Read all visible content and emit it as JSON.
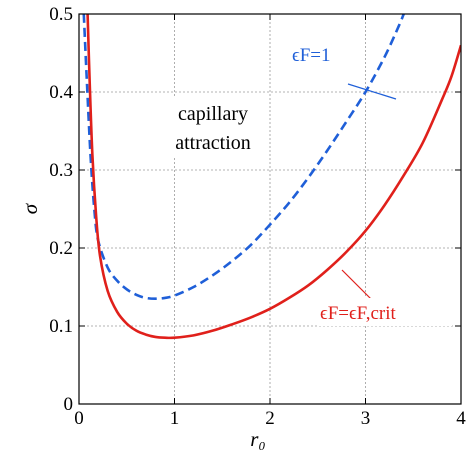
{
  "chart_data": {
    "type": "line",
    "title": "",
    "xlabel": "r₀",
    "ylabel": "σ",
    "xlim": [
      0,
      4
    ],
    "ylim": [
      0,
      0.5
    ],
    "x_ticks": [
      "0",
      "1",
      "2",
      "3",
      "4"
    ],
    "y_ticks": [
      "0",
      "0.1",
      "0.2",
      "0.3",
      "0.4",
      "0.5"
    ],
    "grid": true,
    "annotation": [
      "capillary",
      "attraction"
    ],
    "series": [
      {
        "label": "ϵF=1",
        "color": "#1f5fd8",
        "style": "dashed",
        "points": [
          [
            0.05,
            0.5
          ],
          [
            0.08,
            0.42
          ],
          [
            0.12,
            0.32
          ],
          [
            0.16,
            0.25
          ],
          [
            0.2,
            0.21
          ],
          [
            0.3,
            0.175
          ],
          [
            0.4,
            0.158
          ],
          [
            0.5,
            0.147
          ],
          [
            0.6,
            0.14
          ],
          [
            0.7,
            0.136
          ],
          [
            0.8,
            0.135
          ],
          [
            0.9,
            0.136
          ],
          [
            1.0,
            0.139
          ],
          [
            1.2,
            0.15
          ],
          [
            1.4,
            0.165
          ],
          [
            1.6,
            0.183
          ],
          [
            1.8,
            0.204
          ],
          [
            2.0,
            0.23
          ],
          [
            2.2,
            0.258
          ],
          [
            2.4,
            0.29
          ],
          [
            2.6,
            0.325
          ],
          [
            2.8,
            0.362
          ],
          [
            3.0,
            0.4
          ],
          [
            3.2,
            0.445
          ],
          [
            3.35,
            0.485
          ],
          [
            3.4,
            0.5
          ]
        ]
      },
      {
        "label": "ϵF=ϵF,crit",
        "color": "#e0201b",
        "style": "solid",
        "points": [
          [
            0.09,
            0.5
          ],
          [
            0.11,
            0.42
          ],
          [
            0.14,
            0.32
          ],
          [
            0.18,
            0.24
          ],
          [
            0.22,
            0.19
          ],
          [
            0.3,
            0.145
          ],
          [
            0.4,
            0.118
          ],
          [
            0.5,
            0.103
          ],
          [
            0.6,
            0.094
          ],
          [
            0.7,
            0.089
          ],
          [
            0.8,
            0.086
          ],
          [
            0.9,
            0.085
          ],
          [
            1.0,
            0.085
          ],
          [
            1.2,
            0.088
          ],
          [
            1.4,
            0.094
          ],
          [
            1.6,
            0.102
          ],
          [
            1.8,
            0.111
          ],
          [
            2.0,
            0.122
          ],
          [
            2.2,
            0.136
          ],
          [
            2.4,
            0.152
          ],
          [
            2.6,
            0.172
          ],
          [
            2.8,
            0.195
          ],
          [
            3.0,
            0.222
          ],
          [
            3.2,
            0.255
          ],
          [
            3.4,
            0.293
          ],
          [
            3.6,
            0.335
          ],
          [
            3.8,
            0.39
          ],
          [
            3.9,
            0.42
          ],
          [
            4.0,
            0.46
          ]
        ]
      }
    ]
  }
}
